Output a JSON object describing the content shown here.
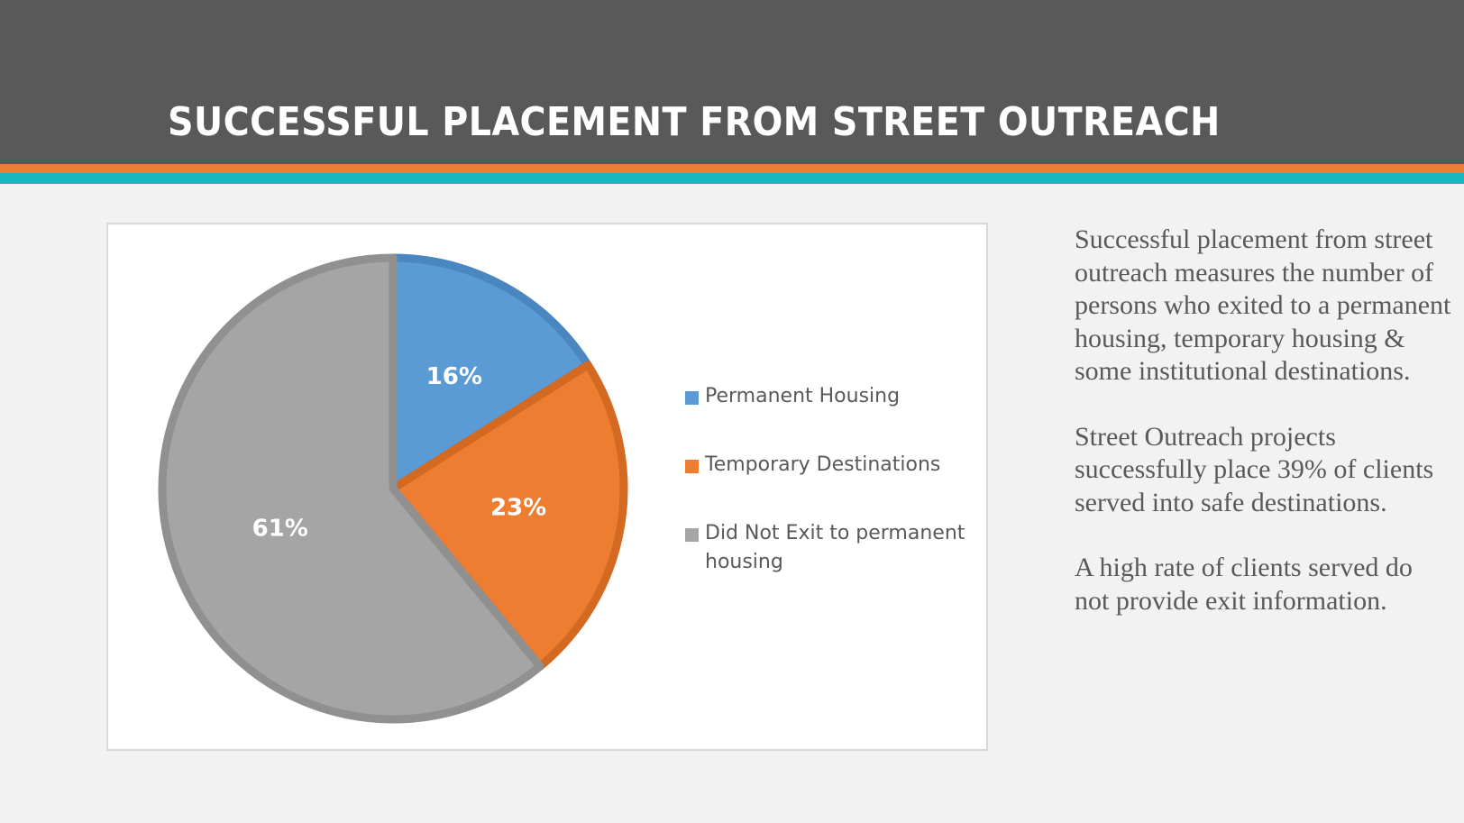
{
  "slide": {
    "title": "SUCCESSFUL PLACEMENT FROM STREET OUTREACH",
    "colors": {
      "header": "#595959",
      "stripe_orange": "#ED7D31",
      "stripe_teal": "#1CB6C1"
    },
    "paragraphs": [
      "Successful placement from street outreach measures the number of persons who exited to a permanent housing, temporary housing & some institutional destinations.",
      "Street Outreach projects successfully place 39% of clients served into safe destinations.",
      "A high rate of clients served do not provide exit information."
    ]
  },
  "chart_data": {
    "type": "pie",
    "title": "",
    "categories": [
      "Permanent Housing",
      "Temporary Destinations",
      "Did Not Exit to permanent housing"
    ],
    "values": [
      16,
      23,
      61
    ],
    "labels": [
      "16%",
      "23%",
      "61%"
    ],
    "colors": [
      "#5B9BD5",
      "#ED7D31",
      "#A5A5A5"
    ],
    "legend_position": "right"
  }
}
